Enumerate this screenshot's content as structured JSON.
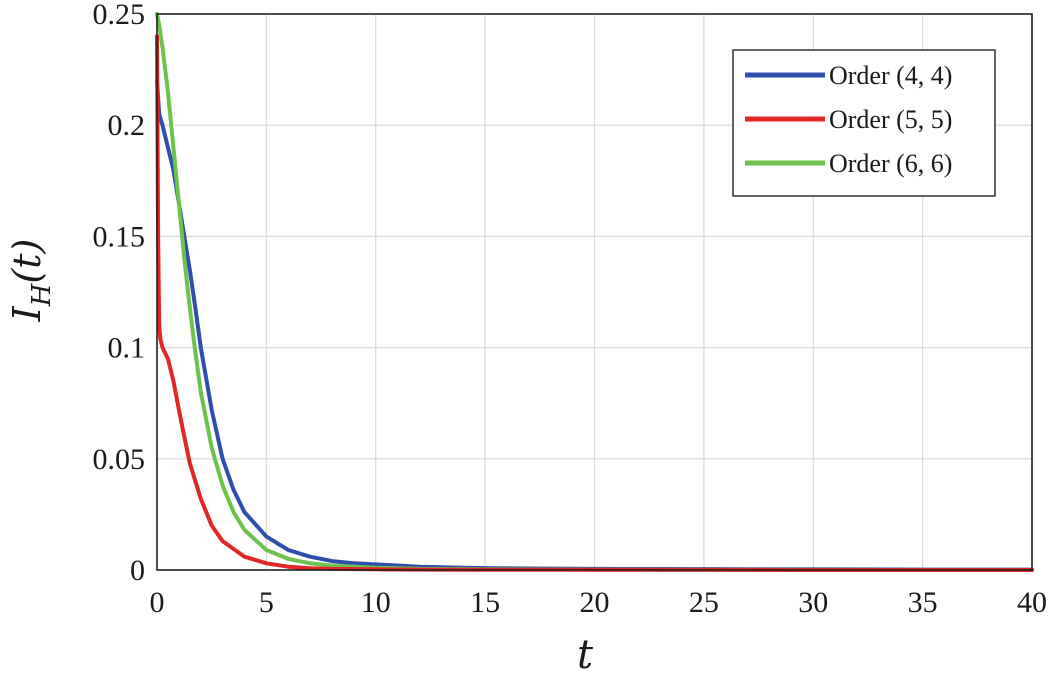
{
  "chart_data": {
    "type": "line",
    "title": "",
    "xlabel": "t",
    "ylabel_main": "I",
    "ylabel_sub": "H",
    "ylabel_arg": "(t)",
    "xlim": [
      0,
      40
    ],
    "ylim": [
      0,
      0.25
    ],
    "x_ticks": [
      0,
      5,
      10,
      15,
      20,
      25,
      30,
      35,
      40
    ],
    "y_ticks": [
      0,
      0.05,
      0.1,
      0.15,
      0.2,
      0.25
    ],
    "x_tick_labels": [
      "0",
      "5",
      "10",
      "15",
      "20",
      "25",
      "30",
      "35",
      "40"
    ],
    "y_tick_labels": [
      "0",
      "0.05",
      "0.1",
      "0.15",
      "0.2",
      "0.25"
    ],
    "grid": true,
    "legend_position": "top-right",
    "series": [
      {
        "name": "Order (4, 4)",
        "color": "#2e4fae",
        "x": [
          0,
          0.1,
          0.25,
          0.5,
          0.75,
          1,
          1.25,
          1.5,
          1.75,
          2,
          2.5,
          3,
          3.5,
          4,
          5,
          6,
          7,
          8,
          9,
          10,
          12,
          14,
          16,
          20,
          25,
          30,
          35,
          40
        ],
        "y": [
          0.22,
          0.205,
          0.2,
          0.19,
          0.18,
          0.165,
          0.15,
          0.135,
          0.118,
          0.1,
          0.072,
          0.05,
          0.036,
          0.026,
          0.015,
          0.009,
          0.006,
          0.004,
          0.003,
          0.0025,
          0.0015,
          0.001,
          0.0007,
          0.0005,
          0.0004,
          0.0003,
          0.0002,
          0.0002
        ]
      },
      {
        "name": "Order (5, 5)",
        "color": "#e22626",
        "x": [
          0,
          0.05,
          0.1,
          0.15,
          0.25,
          0.5,
          0.75,
          1,
          1.25,
          1.5,
          2,
          2.5,
          3,
          4,
          5,
          6,
          7,
          8,
          10,
          12,
          15,
          20,
          25,
          30,
          35,
          40
        ],
        "y": [
          0.24,
          0.15,
          0.11,
          0.104,
          0.1,
          0.095,
          0.085,
          0.072,
          0.06,
          0.048,
          0.032,
          0.02,
          0.013,
          0.006,
          0.003,
          0.0015,
          0.0008,
          0.0005,
          0.0003,
          0.0002,
          0.0001,
          0.0001,
          0.0001,
          0,
          0,
          0
        ]
      },
      {
        "name": "Order (6, 6)",
        "color": "#6cc24a",
        "x": [
          0,
          0.1,
          0.25,
          0.5,
          0.75,
          1,
          1.25,
          1.5,
          1.75,
          2,
          2.5,
          3,
          3.5,
          4,
          5,
          6,
          7,
          8,
          10,
          12,
          15,
          20,
          25,
          30,
          35,
          40
        ],
        "y": [
          0.25,
          0.245,
          0.235,
          0.215,
          0.19,
          0.165,
          0.14,
          0.118,
          0.098,
          0.08,
          0.055,
          0.038,
          0.026,
          0.018,
          0.009,
          0.005,
          0.003,
          0.002,
          0.001,
          0.0005,
          0.0003,
          0.0002,
          0.0001,
          0.0001,
          0,
          0
        ]
      }
    ]
  }
}
